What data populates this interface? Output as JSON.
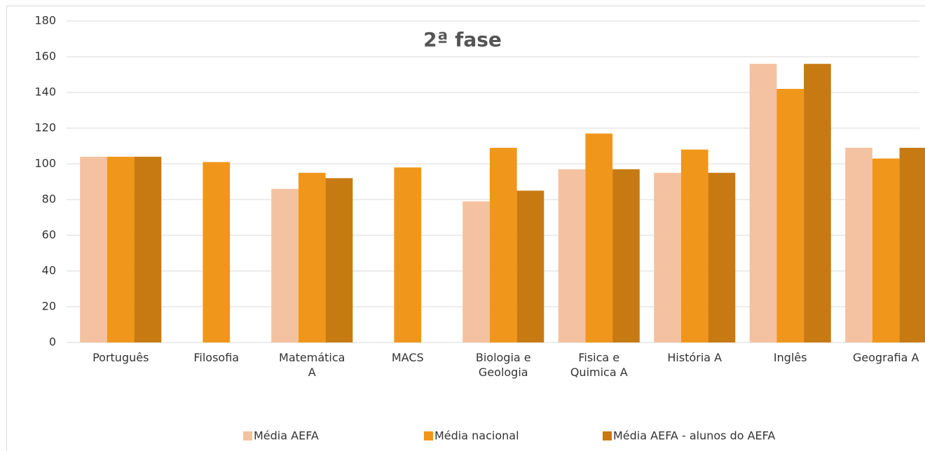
{
  "chart_data": {
    "type": "bar",
    "title": "2ª fase",
    "categories": [
      "Português",
      "Filosofia",
      "Matemática A",
      "MACS",
      "Biologia e Geologia",
      "Fisica e Quimica A",
      "História A",
      "Inglês",
      "Geografia A"
    ],
    "series": [
      {
        "name": "Média AEFA",
        "color": "#f4c2a0",
        "values": [
          104,
          null,
          86,
          null,
          79,
          97,
          95,
          156,
          109
        ]
      },
      {
        "name": "Média nacional",
        "color": "#f0961a",
        "values": [
          104,
          101,
          95,
          98,
          109,
          117,
          108,
          142,
          103
        ]
      },
      {
        "name": "Média AEFA - alunos do AEFA",
        "color": "#c77a12",
        "values": [
          104,
          null,
          92,
          null,
          85,
          97,
          95,
          156,
          109
        ]
      }
    ],
    "ylim": [
      0,
      180
    ],
    "yticks": [
      0,
      20,
      40,
      60,
      80,
      100,
      120,
      140,
      160,
      180
    ],
    "grid": true,
    "legend": "bottom"
  }
}
